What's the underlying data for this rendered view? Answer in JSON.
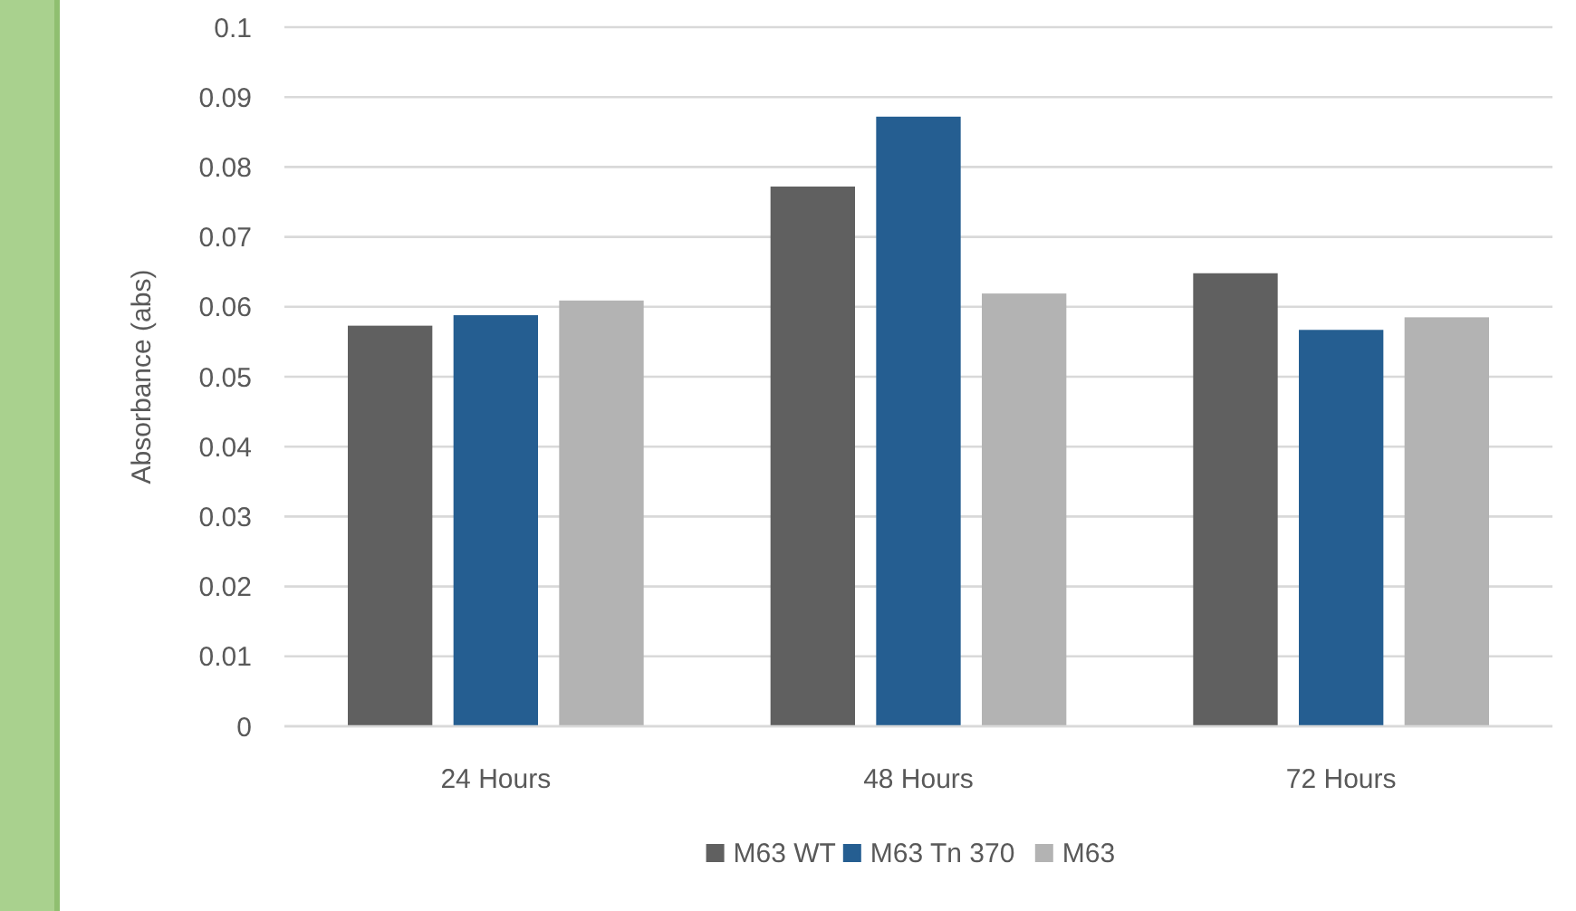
{
  "chart_data": {
    "type": "bar",
    "ylabel": "Absorbance (abs)",
    "categories": [
      "24 Hours",
      "48 Hours",
      "72 Hours"
    ],
    "series": [
      {
        "name": "M63 WT",
        "color": "#606060",
        "values": [
          0.0573,
          0.0772,
          0.0648
        ]
      },
      {
        "name": "M63 Tn 370",
        "color": "#255e91",
        "values": [
          0.0588,
          0.0872,
          0.0567
        ]
      },
      {
        "name": "M63",
        "color": "#b3b3b3",
        "values": [
          0.0609,
          0.0619,
          0.0585
        ]
      }
    ],
    "ylim": [
      0,
      0.1
    ],
    "yticks": [
      0,
      0.01,
      0.02,
      0.03,
      0.04,
      0.05,
      0.06,
      0.07,
      0.08,
      0.09,
      0.1
    ],
    "grid": "y",
    "legend": "bottom"
  }
}
